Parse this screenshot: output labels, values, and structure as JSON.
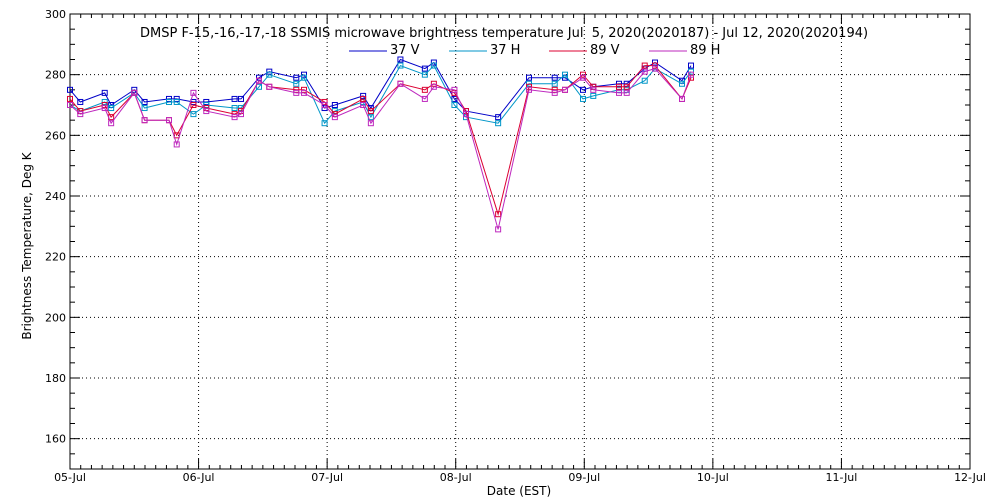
{
  "chart_data": {
    "type": "line",
    "title": "DMSP F-15,-16,-17,-18 SSMIS microwave brightness temperature Jul  5, 2020(2020187) - Jul 12, 2020(2020194)",
    "xlabel": "Date (EST)",
    "ylabel": "Brightness Temperature, Deg K",
    "xlim": [
      0,
      7
    ],
    "ylim": [
      150,
      300
    ],
    "x_ticks": [
      {
        "value": 0,
        "label": "05-Jul"
      },
      {
        "value": 1,
        "label": "06-Jul"
      },
      {
        "value": 2,
        "label": "07-Jul"
      },
      {
        "value": 3,
        "label": "08-Jul"
      },
      {
        "value": 4,
        "label": "09-Jul"
      },
      {
        "value": 5,
        "label": "10-Jul"
      },
      {
        "value": 6,
        "label": "11-Jul"
      },
      {
        "value": 7,
        "label": "12-Jul"
      }
    ],
    "y_ticks": [
      160,
      180,
      200,
      220,
      240,
      260,
      280,
      300
    ],
    "grid": true,
    "legend_position": "top-center",
    "x": [
      0.0,
      0.08,
      0.27,
      0.32,
      0.5,
      0.58,
      0.77,
      0.83,
      0.96,
      1.06,
      1.28,
      1.33,
      1.47,
      1.55,
      1.76,
      1.82,
      1.98,
      2.06,
      2.28,
      2.34,
      2.57,
      2.76,
      2.83,
      2.99,
      3.08,
      3.33,
      3.57,
      3.77,
      3.85,
      3.99,
      4.07,
      4.27,
      4.33,
      4.47,
      4.55,
      4.76,
      4.83
    ],
    "series": [
      {
        "name": "37 V",
        "color": "#0000c8",
        "values": [
          275,
          271,
          274,
          270,
          275,
          271,
          272,
          272,
          271,
          271,
          272,
          272,
          279,
          281,
          279,
          280,
          269,
          270,
          273,
          269,
          285,
          282,
          284,
          272,
          268,
          266,
          279,
          279,
          279,
          275,
          276,
          277,
          277,
          282,
          284,
          278,
          283
        ]
      },
      {
        "name": "37 H",
        "color": "#0096c8",
        "values": [
          270,
          268,
          271,
          269,
          274,
          269,
          271,
          271,
          267,
          270,
          269,
          269,
          276,
          280,
          277,
          279,
          264,
          268,
          271,
          266,
          283,
          280,
          283,
          270,
          266,
          264,
          277,
          277,
          280,
          272,
          273,
          275,
          275,
          278,
          282,
          277,
          281
        ]
      },
      {
        "name": "89 V",
        "color": "#dc0032",
        "values": [
          272,
          268,
          270,
          266,
          274,
          265,
          265,
          260,
          270,
          269,
          267,
          268,
          278,
          276,
          275,
          275,
          271,
          267,
          272,
          268,
          277,
          275,
          277,
          274,
          268,
          234,
          276,
          275,
          275,
          280,
          276,
          276,
          276,
          283,
          283,
          272,
          279
        ]
      },
      {
        "name": "89 H",
        "color": "#be28be",
        "values": [
          270,
          267,
          269,
          264,
          274,
          265,
          265,
          257,
          274,
          268,
          266,
          267,
          278,
          276,
          274,
          274,
          270,
          266,
          270,
          264,
          277,
          272,
          276,
          275,
          267,
          229,
          275,
          274,
          275,
          279,
          275,
          274,
          274,
          281,
          282,
          272,
          280
        ]
      }
    ]
  }
}
